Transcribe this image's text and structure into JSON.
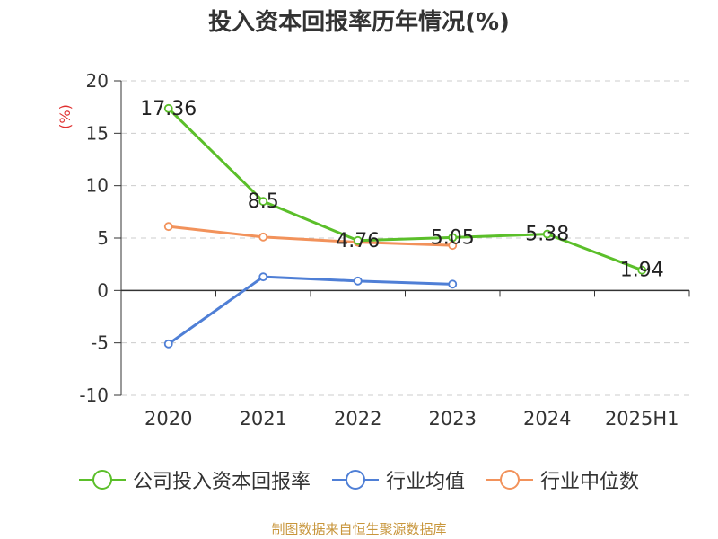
{
  "chart_data": {
    "type": "line",
    "title": "投入资本回报率历年情况(%)",
    "ylabel": "(%)",
    "categories": [
      "2020",
      "2021",
      "2022",
      "2023",
      "2024",
      "2025H1"
    ],
    "ylim": [
      -10,
      20
    ],
    "yticks": [
      20,
      15,
      10,
      5,
      0,
      -5,
      -10
    ],
    "grid": true,
    "legend_position": "bottom",
    "series": [
      {
        "name": "公司投入资本回报率",
        "color": "#5bbf2a",
        "values": [
          17.36,
          8.5,
          4.76,
          5.05,
          5.38,
          1.94
        ],
        "data_labels": [
          "17.36",
          "8.5",
          "4.76",
          "5.05",
          "5.38",
          "1.94"
        ]
      },
      {
        "name": "行业均值",
        "color": "#4f7fd6",
        "values": [
          -5.1,
          1.3,
          0.9,
          0.6,
          null,
          null
        ]
      },
      {
        "name": "行业中位数",
        "color": "#f2925b",
        "values": [
          6.1,
          5.1,
          4.6,
          4.3,
          null,
          null
        ]
      }
    ]
  },
  "source_text": "制图数据来自恒生聚源数据库"
}
